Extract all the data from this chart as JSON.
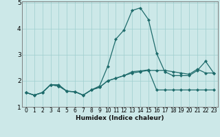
{
  "xlabel": "Humidex (Indice chaleur)",
  "background_color": "#cce8e8",
  "grid_color": "#9ecece",
  "line_color": "#1e6b6b",
  "x": [
    0,
    1,
    2,
    3,
    4,
    5,
    6,
    7,
    8,
    9,
    10,
    11,
    12,
    13,
    14,
    15,
    16,
    17,
    18,
    19,
    20,
    21,
    22,
    23
  ],
  "s1": [
    1.55,
    1.45,
    1.55,
    1.85,
    1.85,
    1.6,
    1.58,
    1.45,
    1.65,
    1.75,
    2.0,
    2.1,
    2.2,
    2.3,
    2.35,
    2.4,
    2.4,
    2.4,
    2.35,
    2.3,
    2.25,
    2.45,
    2.3,
    2.3
  ],
  "s2": [
    1.55,
    1.45,
    1.55,
    1.85,
    1.8,
    1.6,
    1.58,
    1.45,
    1.65,
    1.75,
    2.0,
    2.1,
    2.2,
    2.35,
    2.38,
    2.42,
    1.65,
    1.65,
    1.65,
    1.65,
    1.65,
    1.65,
    1.65,
    1.65
  ],
  "s3": [
    1.55,
    1.45,
    1.55,
    1.85,
    1.8,
    1.6,
    1.58,
    1.45,
    1.65,
    1.8,
    2.55,
    3.6,
    3.95,
    4.7,
    4.8,
    4.35,
    3.05,
    2.35,
    2.2,
    2.2,
    2.2,
    2.4,
    2.75,
    2.3
  ],
  "ylim": [
    1.0,
    5.05
  ],
  "yticks": [
    1,
    2,
    3,
    4,
    5
  ],
  "xlim": [
    -0.5,
    23.5
  ],
  "xticks": [
    0,
    1,
    2,
    3,
    4,
    5,
    6,
    7,
    8,
    9,
    10,
    11,
    12,
    13,
    14,
    15,
    16,
    17,
    18,
    19,
    20,
    21,
    22,
    23
  ],
  "xlabel_fontsize": 6.5,
  "tick_fontsize": 5.5,
  "ytick_fontsize": 6.5,
  "linewidth": 0.9,
  "markersize": 2.2
}
